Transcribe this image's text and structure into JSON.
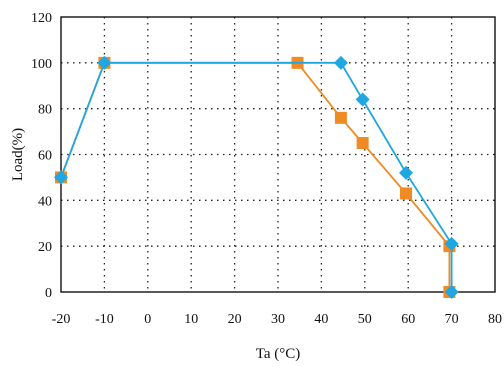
{
  "chart_data": {
    "type": "line",
    "title": "",
    "xlabel": "Ta (°C)",
    "ylabel": "Load(%)",
    "xlim": [
      -20,
      80
    ],
    "ylim": [
      0,
      120
    ],
    "xticks": [
      -20,
      -10,
      0,
      10,
      20,
      30,
      40,
      50,
      60,
      70,
      80
    ],
    "xtick_labels": [
      "-20",
      "-10",
      "0",
      "10",
      "20",
      "30",
      "40",
      "50",
      "60",
      "70",
      "80"
    ],
    "yticks": [
      0,
      20,
      40,
      60,
      80,
      100,
      120
    ],
    "ytick_labels": [
      "0",
      "20",
      "40",
      "60",
      "80",
      "100",
      "120"
    ],
    "grid": true,
    "legend": "none",
    "series": [
      {
        "color": "#f08a24",
        "marker": "square",
        "x": [
          -20,
          -10,
          34.5,
          44.5,
          49.5,
          59.5,
          69.5,
          69.5
        ],
        "y": [
          50,
          100,
          100,
          76,
          65,
          43,
          20,
          0
        ]
      },
      {
        "color": "#1ea7e0",
        "marker": "diamond",
        "x": [
          -20,
          -10,
          44.5,
          49.5,
          59.5,
          70,
          70
        ],
        "y": [
          50,
          100,
          100,
          84,
          52,
          21,
          0
        ]
      }
    ]
  }
}
